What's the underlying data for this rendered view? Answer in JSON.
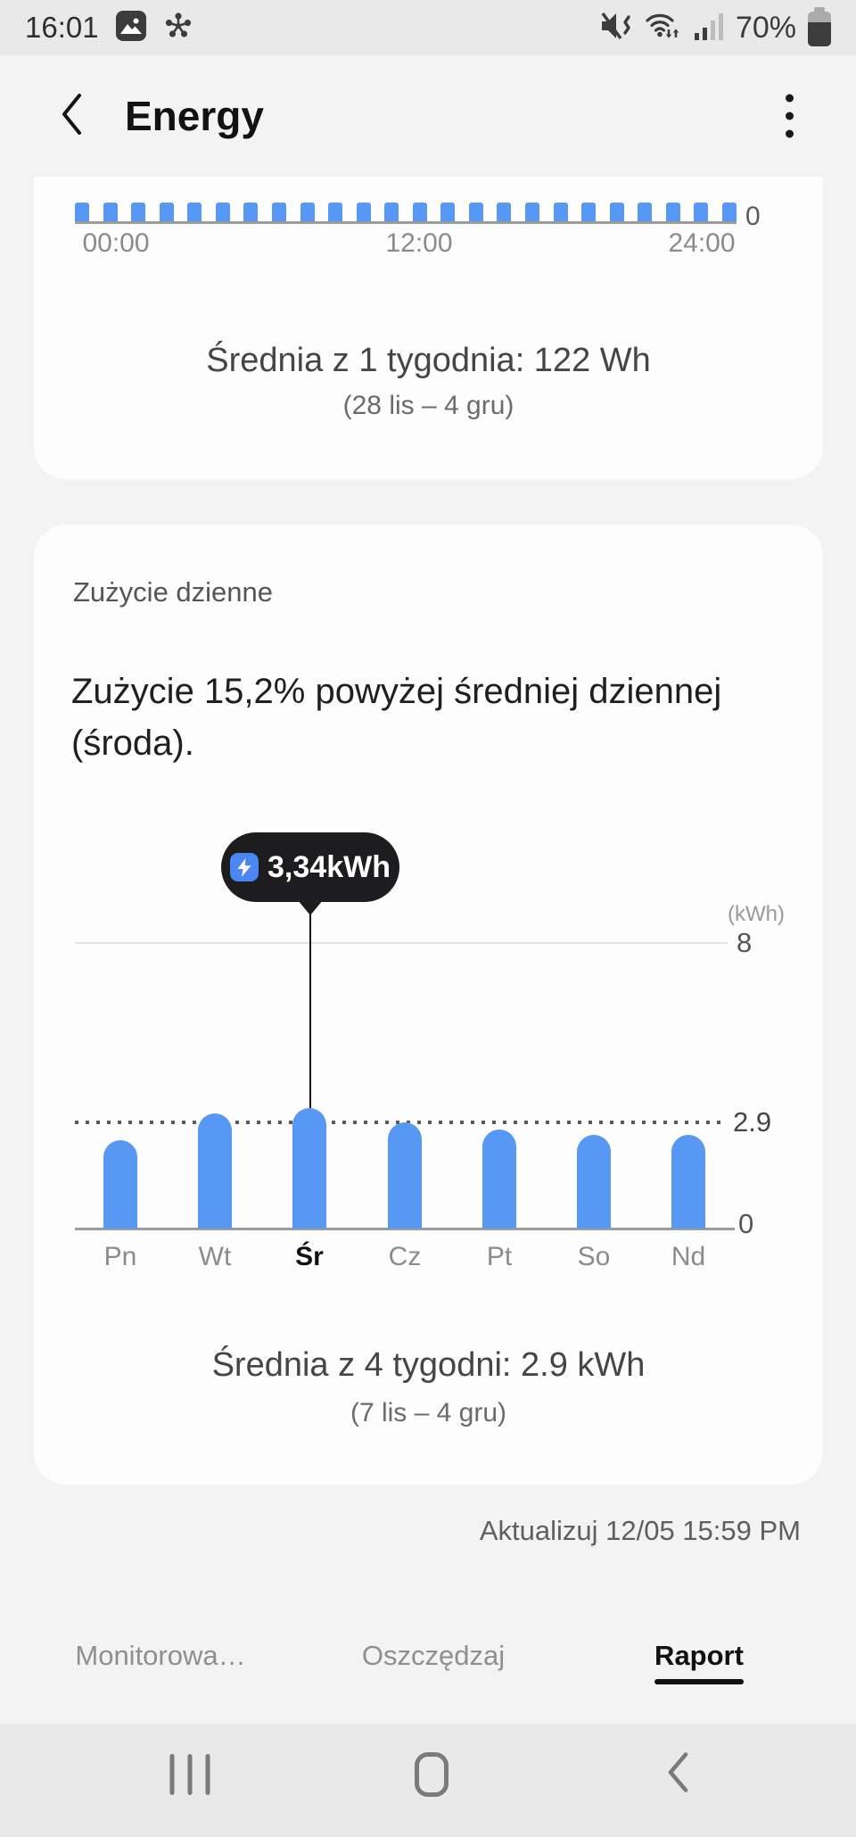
{
  "status_bar": {
    "time": "16:01",
    "battery_percent": "70%"
  },
  "header": {
    "title": "Energy"
  },
  "hourly_card": {
    "summary": "Średnia z 1 tygodnia: 122 Wh",
    "range": "(28 lis – 4 gru)",
    "y_zero": "0",
    "x_labels": [
      "00:00",
      "12:00",
      "24:00"
    ]
  },
  "daily_card": {
    "title": "Zużycie dzienne",
    "insight_line1": "Zużycie 15,2% powyżej średniej dziennej",
    "insight_line2": "(środa).",
    "tooltip_value": "3,34kWh",
    "unit": "(kWh)",
    "y_max": "8",
    "y_avg": "2.9",
    "y_zero": "0",
    "summary": "Średnia z 4 tygodni: 2.9 kWh",
    "range": "(7 lis – 4 gru)"
  },
  "updated_label": "Aktualizuj 12/05 15:59 PM",
  "tabs": [
    {
      "label": "Monitorowa…",
      "active": false
    },
    {
      "label": "Oszczędzaj",
      "active": false
    },
    {
      "label": "Raport",
      "active": true
    }
  ],
  "chart_data": [
    {
      "type": "bar",
      "title": "Średnia z 1 tygodnia: 122 Wh",
      "subtitle": "(28 lis – 4 gru)",
      "unit": "Wh",
      "x_tick_labels": [
        "00:00",
        "12:00",
        "24:00"
      ],
      "y_tick_labels": [
        "0"
      ],
      "values_estimated": true,
      "values": [
        122,
        122,
        122,
        122,
        122,
        122,
        122,
        122,
        122,
        122,
        122,
        122,
        122,
        122,
        122,
        122,
        122,
        122,
        122,
        122,
        122,
        122,
        122,
        122
      ]
    },
    {
      "type": "bar",
      "title": "Średnia z 4 tygodni: 2.9 kWh",
      "subtitle": "(7 lis – 4 gru)",
      "unit": "(kWh)",
      "categories": [
        "Pn",
        "Wt",
        "Śr",
        "Cz",
        "Pt",
        "So",
        "Nd"
      ],
      "values": [
        2.45,
        3.2,
        3.34,
        2.95,
        2.75,
        2.6,
        2.6
      ],
      "selected_index": 2,
      "selected_label": "3,34kWh",
      "average": 2.9,
      "average_line": "dotted",
      "ylim": [
        0,
        8
      ],
      "yticks": [
        0,
        2.9,
        8
      ],
      "values_estimated_except_selected": true
    }
  ],
  "colors": {
    "bar_blue": "#5798F4",
    "tooltip_bg": "#1d1d1f",
    "tooltip_icon_blue": "#4b86f2",
    "page_bg": "#f3f3f3",
    "card_bg": "#fdfdfd",
    "system_bar_bg": "#e9e9e9"
  }
}
